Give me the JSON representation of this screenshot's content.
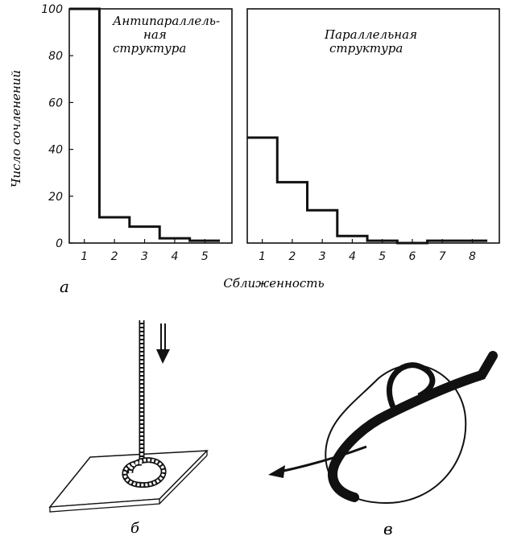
{
  "chart_data": [
    {
      "type": "histogram",
      "title_lines": [
        "Антипараллель-",
        "ная",
        "структура"
      ],
      "ylabel": "Число сочленений",
      "yticks": [
        "0",
        "20",
        "40",
        "60",
        "80",
        "100"
      ],
      "ylim": [
        0,
        100
      ],
      "xticks": [
        "1",
        "2",
        "3",
        "4",
        "5"
      ],
      "xlim": [
        0.5,
        5.9
      ],
      "categories": [
        1,
        2,
        3,
        4,
        5
      ],
      "values": [
        100,
        11,
        7,
        2,
        1
      ]
    },
    {
      "type": "histogram",
      "title_lines": [
        "Параллельная",
        "структура"
      ],
      "xticks": [
        "1",
        "2",
        "3",
        "4",
        "5",
        "6",
        "7",
        "8"
      ],
      "ylim": [
        0,
        100
      ],
      "xlim": [
        0.5,
        8.9
      ],
      "categories": [
        1,
        2,
        3,
        4,
        5,
        6,
        7,
        8
      ],
      "values": [
        45,
        26,
        14,
        3,
        1,
        0,
        1,
        1
      ]
    }
  ],
  "shared_xlabel": "Сближенность",
  "panel_labels": {
    "a": "а",
    "b": "б",
    "c": "в"
  }
}
